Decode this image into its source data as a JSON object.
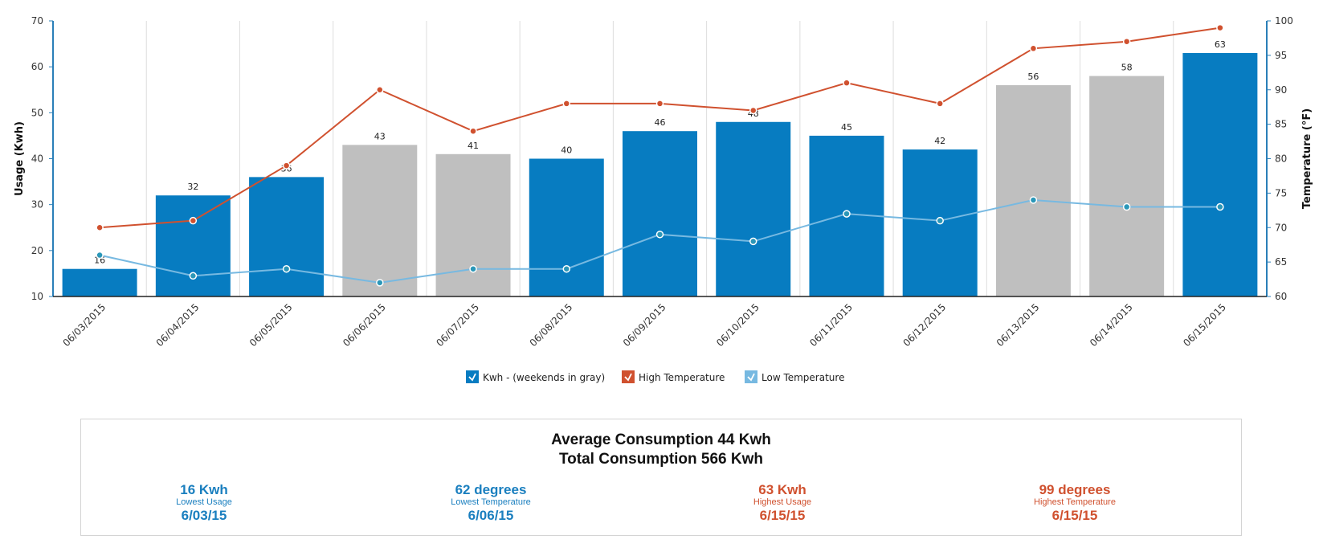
{
  "chart_data": {
    "type": "bar",
    "categories": [
      "06/03/2015",
      "06/04/2015",
      "06/05/2015",
      "06/06/2015",
      "06/07/2015",
      "06/08/2015",
      "06/09/2015",
      "06/10/2015",
      "06/11/2015",
      "06/12/2015",
      "06/13/2015",
      "06/14/2015",
      "06/15/2015"
    ],
    "series": [
      {
        "name": "Kwh - (weekends in gray)",
        "type": "bar",
        "axis": "left",
        "values": [
          16,
          32,
          36,
          43,
          41,
          40,
          46,
          48,
          45,
          42,
          56,
          58,
          63
        ],
        "value_labels": [
          "16",
          "32",
          "36",
          "43",
          "41",
          "40",
          "46",
          "48",
          "45",
          "42",
          "56",
          "58",
          "63"
        ],
        "weekend": [
          false,
          false,
          false,
          true,
          true,
          false,
          false,
          false,
          false,
          false,
          true,
          true,
          false
        ],
        "color": "#077cc1",
        "weekend_color": "#bfbfbf"
      },
      {
        "name": "High Temperature",
        "type": "line",
        "axis": "right",
        "values": [
          70,
          71,
          79,
          90,
          84,
          88,
          88,
          87,
          91,
          88,
          96,
          97,
          99
        ],
        "color": "#d0512f"
      },
      {
        "name": "Low Temperature",
        "type": "line",
        "axis": "right",
        "values": [
          66,
          63,
          64,
          62,
          64,
          64,
          69,
          68,
          72,
          71,
          74,
          73,
          73
        ],
        "color": "#77b9e1"
      }
    ],
    "ylabel": "Usage (Kwh)",
    "y2label": "Temperature (°F)",
    "ylim": [
      10,
      70
    ],
    "y2lim": [
      60,
      100
    ],
    "yticks": [
      10,
      20,
      30,
      40,
      50,
      60,
      70
    ],
    "y2ticks": [
      60,
      65,
      70,
      75,
      80,
      85,
      90,
      95,
      100
    ],
    "grid": "vertical",
    "legend_position": "bottom-center"
  },
  "summary": {
    "average_text": "Average Consumption 44 Kwh",
    "total_text": "Total Consumption 566 Kwh",
    "stats": [
      {
        "value": "16 Kwh",
        "label": "Lowest Usage",
        "date": "6/03/15",
        "color": "#1a7fbf"
      },
      {
        "value": "62 degrees",
        "label": "Lowest Temperature",
        "date": "6/06/15",
        "color": "#1a7fbf"
      },
      {
        "value": "63 Kwh",
        "label": "Highest Usage",
        "date": "6/15/15",
        "color": "#d0512f"
      },
      {
        "value": "99 degrees",
        "label": "Highest Temperature",
        "date": "6/15/15",
        "color": "#d0512f"
      }
    ]
  }
}
